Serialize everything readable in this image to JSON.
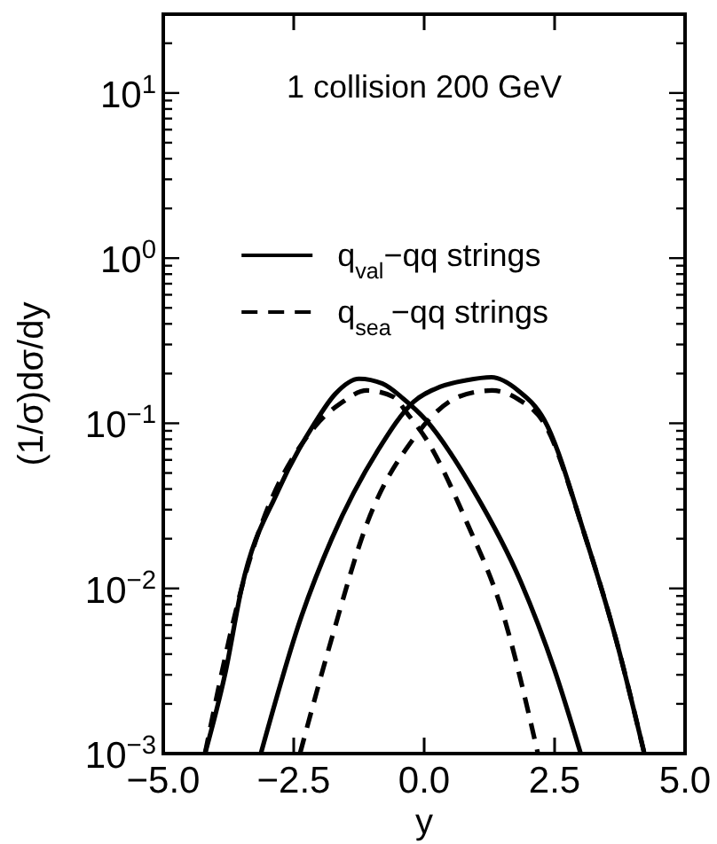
{
  "chart_data": {
    "type": "line",
    "xlabel": "y",
    "ylabel": "(1/σ)dσ/dy",
    "annotations": [
      "1 collision  200 GeV"
    ],
    "log": "y",
    "legend": "top",
    "grid": false,
    "xlim": [
      -5,
      5
    ],
    "xticks": [
      {
        "value": -5,
        "label": "−5.0"
      },
      {
        "value": -2.5,
        "label": "−2.5"
      },
      {
        "value": 0,
        "label": "0.0"
      },
      {
        "value": 2.5,
        "label": "2.5"
      },
      {
        "value": 5,
        "label": "5.0"
      }
    ],
    "ylim": [
      0.001,
      30
    ],
    "yticks": [
      {
        "value": 0.001,
        "label": "10$^{−3}$"
      },
      {
        "value": 0.002,
        "label": null
      },
      {
        "value": 0.003,
        "label": null
      },
      {
        "value": 0.004,
        "label": null
      },
      {
        "value": 0.005,
        "label": null
      },
      {
        "value": 0.006,
        "label": null
      },
      {
        "value": 0.007,
        "label": null
      },
      {
        "value": 0.008,
        "label": null
      },
      {
        "value": 0.009,
        "label": null
      },
      {
        "value": 0.01,
        "label": "10$^{−2}$"
      },
      {
        "value": 0.02,
        "label": null
      },
      {
        "value": 0.03,
        "label": null
      },
      {
        "value": 0.04,
        "label": null
      },
      {
        "value": 0.05,
        "label": null
      },
      {
        "value": 0.06,
        "label": null
      },
      {
        "value": 0.07,
        "label": null
      },
      {
        "value": 0.08,
        "label": null
      },
      {
        "value": 0.09,
        "label": null
      },
      {
        "value": 0.1,
        "label": "10$^{−1}$"
      },
      {
        "value": 0.2,
        "label": null
      },
      {
        "value": 0.3,
        "label": null
      },
      {
        "value": 0.4,
        "label": null
      },
      {
        "value": 0.5,
        "label": null
      },
      {
        "value": 0.6,
        "label": null
      },
      {
        "value": 0.7,
        "label": null
      },
      {
        "value": 0.8,
        "label": null
      },
      {
        "value": 0.9,
        "label": null
      },
      {
        "value": 1,
        "label": "10$^{0}$"
      },
      {
        "value": 2,
        "label": null
      },
      {
        "value": 3,
        "label": null
      },
      {
        "value": 4,
        "label": null
      },
      {
        "value": 5,
        "label": null
      },
      {
        "value": 6,
        "label": null
      },
      {
        "value": 7,
        "label": null
      },
      {
        "value": 8,
        "label": null
      },
      {
        "value": 9,
        "label": null
      },
      {
        "value": 10,
        "label": "10$^{1}$"
      },
      {
        "value": 20,
        "label": null
      },
      {
        "value": 30,
        "label": null
      }
    ],
    "series": [
      {
        "name": "q$_{val}$−qq strings",
        "color": "#000000",
        "line_style": "solid",
        "x": [
          -4.2,
          -3.8,
          -3.5,
          -2.8,
          -2.1,
          -1.7,
          -1.25,
          -0.8,
          -0.4,
          0.03,
          0.95,
          1.85,
          2.5,
          3.0
        ],
        "values": [
          0.001,
          0.0032,
          0.01,
          0.039,
          0.1,
          0.151,
          0.186,
          0.174,
          0.141,
          0.105,
          0.039,
          0.011,
          0.0032,
          0.001
        ]
      },
      {
        "color": "#000000",
        "line_style": "solid",
        "x": [
          -3.13,
          -2.35,
          -1.77,
          -0.88,
          -0.2,
          0.3,
          0.8,
          1.29,
          1.8,
          2.3,
          3.1,
          3.67,
          4.22
        ],
        "values": [
          0.001,
          0.0068,
          0.02,
          0.069,
          0.135,
          0.166,
          0.182,
          0.19,
          0.158,
          0.105,
          0.02,
          0.005,
          0.001
        ]
      },
      {
        "name": "q$_{sea}$−qq strings",
        "color": "#000000",
        "line_style": "dashed",
        "x": [
          -4.2,
          -3.5,
          -2.1,
          -1.6,
          -1.1,
          -0.6,
          -0.3,
          0.03,
          0.82,
          1.5,
          2.18
        ],
        "values": [
          0.001,
          0.01,
          0.095,
          0.132,
          0.158,
          0.145,
          0.112,
          0.081,
          0.025,
          0.0072,
          0.001
        ]
      },
      {
        "color": "#000000",
        "line_style": "dashed",
        "x": [
          -2.38,
          -1.77,
          -1.09,
          -0.2,
          0.48,
          1.0,
          1.3,
          1.8,
          2.3,
          3.1,
          3.67,
          4.22
        ],
        "values": [
          0.001,
          0.005,
          0.025,
          0.081,
          0.135,
          0.155,
          0.158,
          0.14,
          0.1,
          0.02,
          0.005,
          0.001
        ]
      }
    ]
  }
}
